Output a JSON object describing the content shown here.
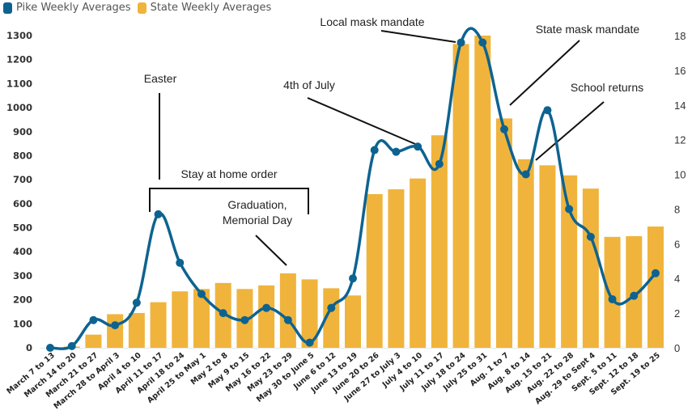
{
  "legend": {
    "series_line_label": "Pike Weekly Averages",
    "series_bar_label": "State Weekly Averages"
  },
  "colors": {
    "line": "#0d6390",
    "bar": "#f0b43c",
    "annotation": "#111111"
  },
  "chart_data": {
    "type": "bar",
    "title": "",
    "xlabel": "",
    "ylabel": "",
    "ylim": [
      0,
      1300
    ],
    "y2lim": [
      0,
      18
    ],
    "grid": false,
    "legend_position": "top-left",
    "yticks": [
      0,
      100,
      200,
      300,
      400,
      500,
      600,
      700,
      800,
      900,
      1000,
      1100,
      1200,
      1300
    ],
    "y2ticks": [
      0,
      2,
      4,
      6,
      8,
      10,
      12,
      14,
      16,
      18
    ],
    "categories": [
      "March 7 to 13",
      "March 14 to 20",
      "March 21 to 27",
      "March 28 to April 3",
      "April 4 to 10",
      "April 11 to 17",
      "April 18 to 24",
      "April 25 to May 1",
      "May 2 to 8",
      "May 9 to 15",
      "May 16 to 22",
      "May 23 to 29",
      "May 30 to June 5",
      "June 6 to 12",
      "June 13 to 19",
      "June 20 to 26",
      "June 27 to July 3",
      "July 4 to 10",
      "July 11 to 17",
      "July 18 to 24",
      "July 25 to 31",
      "Aug. 1 to 7",
      "Aug. 8 to 14",
      "Aug. 15 to 21",
      "Aug. 22 to 28",
      "Aug. 29 to Sept 4",
      "Sept. 5 to 11",
      "Sept. 12 to 18",
      "Sept. 19 to 25"
    ],
    "series": [
      {
        "name": "State Weekly Averages",
        "type": "bar",
        "axis": "left",
        "values": [
          0,
          5,
          55,
          140,
          145,
          190,
          235,
          245,
          270,
          245,
          260,
          310,
          285,
          248,
          218,
          640,
          660,
          705,
          885,
          1265,
          1300,
          955,
          785,
          760,
          718,
          663,
          462,
          465,
          505
        ]
      },
      {
        "name": "Pike Weekly Averages",
        "type": "line",
        "axis": "right",
        "values": [
          0,
          0.1,
          1.6,
          1.3,
          2.6,
          7.7,
          4.9,
          3.1,
          2.0,
          1.6,
          2.3,
          1.6,
          0.3,
          2.3,
          4.0,
          11.4,
          11.3,
          11.6,
          10.6,
          17.6,
          17.6,
          12.6,
          10.0,
          13.7,
          8.0,
          6.4,
          2.8,
          3.0,
          4.3
        ]
      }
    ],
    "annotations": [
      {
        "text": "Easter",
        "category": "April 11 to 17"
      },
      {
        "text": "Stay at home order",
        "range": [
          "April 11 to 17",
          "May 30 to June 5"
        ]
      },
      {
        "text": "Graduation,",
        "text2": "Memorial Day",
        "category": "May 23 to 29"
      },
      {
        "text": "4th of July",
        "category": "July 4 to 10"
      },
      {
        "text": "Local mask mandate",
        "category": "July 18 to 24"
      },
      {
        "text": "State mask mandate",
        "category": "Aug. 1 to 7"
      },
      {
        "text": "School returns",
        "category": "Aug. 8 to 14"
      }
    ]
  }
}
